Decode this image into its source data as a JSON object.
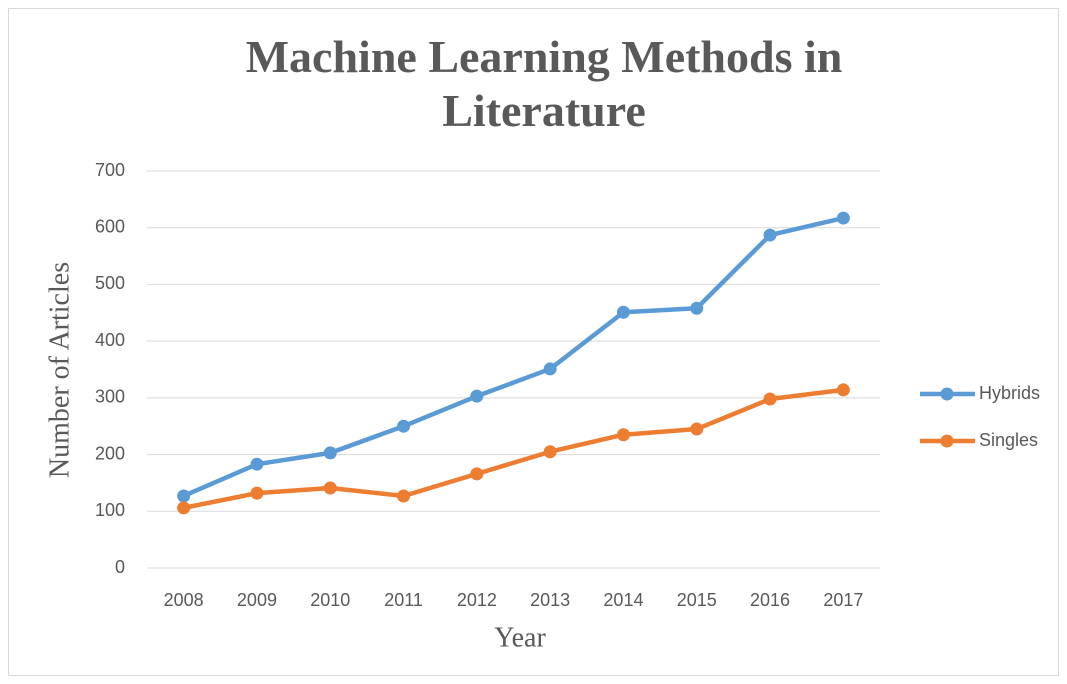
{
  "chart_data": {
    "type": "line",
    "title": "Machine Learning Methods in Literature",
    "x_label": "Year",
    "y_label": "Number of Articles",
    "categories": [
      "2008",
      "2009",
      "2010",
      "2011",
      "2012",
      "2013",
      "2014",
      "2015",
      "2016",
      "2017"
    ],
    "series": [
      {
        "name": "Hybrids",
        "color": "#5b9bd5",
        "values": [
          127,
          183,
          203,
          250,
          303,
          351,
          451,
          458,
          587,
          617
        ]
      },
      {
        "name": "Singles",
        "color": "#ed7d31",
        "values": [
          106,
          132,
          141,
          127,
          166,
          205,
          235,
          245,
          298,
          314
        ]
      }
    ],
    "ylim": [
      0,
      700
    ],
    "yticks": [
      0,
      100,
      200,
      300,
      400,
      500,
      600,
      700
    ],
    "grid": true,
    "legend": "right"
  }
}
